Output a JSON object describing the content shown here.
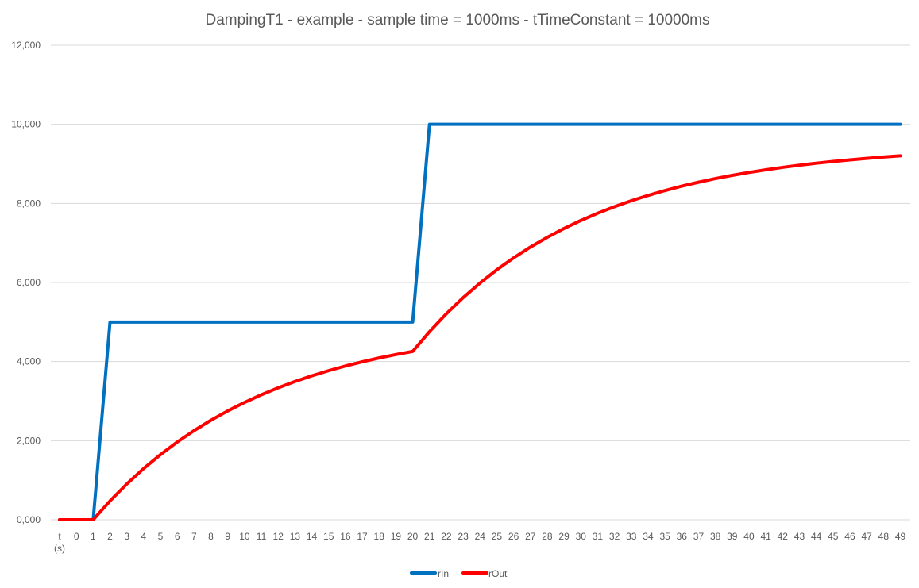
{
  "chart_data": {
    "type": "line",
    "title": "DampingT1 - example - sample time = 1000ms -  tTimeConstant = 10000ms",
    "xlabel": "",
    "ylabel": "",
    "categories": [
      "t (s)",
      "0",
      "1",
      "2",
      "3",
      "4",
      "5",
      "6",
      "7",
      "8",
      "9",
      "10",
      "11",
      "12",
      "13",
      "14",
      "15",
      "16",
      "17",
      "18",
      "19",
      "20",
      "21",
      "22",
      "23",
      "24",
      "25",
      "26",
      "27",
      "28",
      "29",
      "30",
      "31",
      "32",
      "33",
      "34",
      "35",
      "36",
      "37",
      "38",
      "39",
      "40",
      "41",
      "42",
      "43",
      "44",
      "45",
      "46",
      "47",
      "48",
      "49"
    ],
    "ylim": [
      0,
      12000
    ],
    "yticks": [
      {
        "value": 0,
        "label": "0,000"
      },
      {
        "value": 2000,
        "label": "2,000"
      },
      {
        "value": 4000,
        "label": "4,000"
      },
      {
        "value": 6000,
        "label": "6,000"
      },
      {
        "value": 8000,
        "label": "8,000"
      },
      {
        "value": 10000,
        "label": "10,000"
      },
      {
        "value": 12000,
        "label": "12,000"
      }
    ],
    "grid": true,
    "legend_position": "bottom",
    "series": [
      {
        "name": "rIn",
        "color": "#0070C0",
        "values": [
          0,
          0,
          0,
          5000,
          5000,
          5000,
          5000,
          5000,
          5000,
          5000,
          5000,
          5000,
          5000,
          5000,
          5000,
          5000,
          5000,
          5000,
          5000,
          5000,
          5000,
          5000,
          10000,
          10000,
          10000,
          10000,
          10000,
          10000,
          10000,
          10000,
          10000,
          10000,
          10000,
          10000,
          10000,
          10000,
          10000,
          10000,
          10000,
          10000,
          10000,
          10000,
          10000,
          10000,
          10000,
          10000,
          10000,
          10000,
          10000,
          10000,
          10000
        ]
      },
      {
        "name": "rOut",
        "color": "#FF0000",
        "values": [
          0,
          0,
          0,
          476,
          906,
          1296,
          1647,
          1966,
          2255,
          2516,
          2753,
          2967,
          3161,
          3337,
          3496,
          3640,
          3770,
          3888,
          3994,
          4091,
          4178,
          4257,
          4757,
          5209,
          5617,
          5986,
          6321,
          6622,
          6896,
          7142,
          7366,
          7568,
          7752,
          7917,
          8067,
          8202,
          8325,
          8436,
          8536,
          8627,
          8709,
          8783,
          8850,
          8911,
          8966,
          9016,
          9061,
          9101,
          9138,
          9172,
          9202
        ]
      }
    ]
  }
}
